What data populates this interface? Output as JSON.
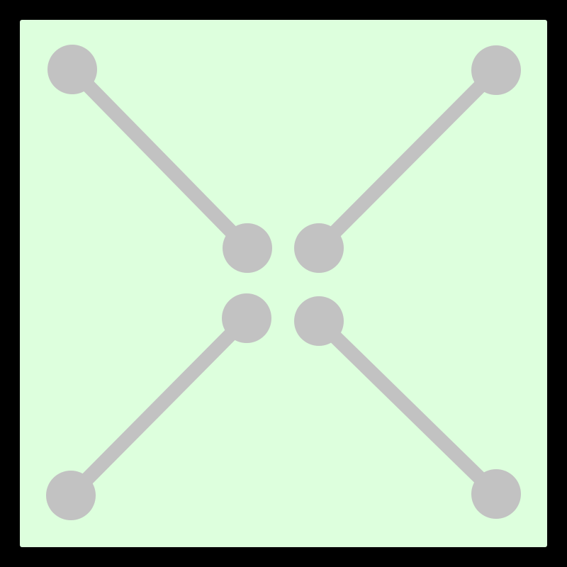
{
  "puzzle": {
    "colors": {
      "frame": "#000000",
      "board": "#ddffdd",
      "node": "#c2c2c2",
      "edge": "#c2c2c2"
    },
    "node_count": 8,
    "edge_count": 4,
    "nodes": [
      {
        "id": "top-left-outer"
      },
      {
        "id": "top-left-inner"
      },
      {
        "id": "top-right-outer"
      },
      {
        "id": "top-right-inner"
      },
      {
        "id": "bottom-left-outer"
      },
      {
        "id": "bottom-left-inner"
      },
      {
        "id": "bottom-right-outer"
      },
      {
        "id": "bottom-right-inner"
      }
    ],
    "edges": [
      {
        "from": "top-left-outer",
        "to": "top-left-inner"
      },
      {
        "from": "top-right-outer",
        "to": "top-right-inner"
      },
      {
        "from": "bottom-left-outer",
        "to": "bottom-left-inner"
      },
      {
        "from": "bottom-right-outer",
        "to": "bottom-right-inner"
      }
    ]
  }
}
